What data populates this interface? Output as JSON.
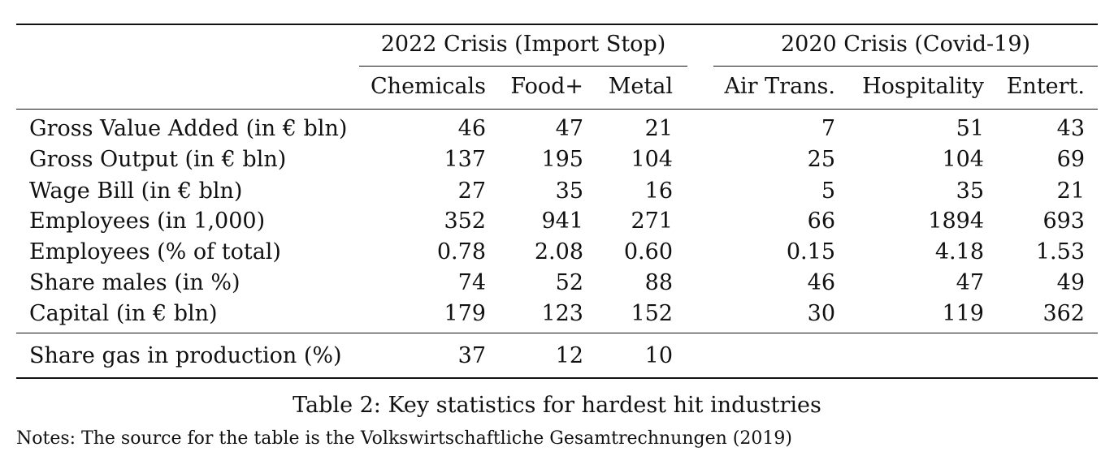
{
  "table": {
    "group_headers": [
      "2022 Crisis (Import Stop)",
      "2020 Crisis (Covid-19)"
    ],
    "columns": [
      "Chemicals",
      "Food+",
      "Metal",
      "Air Trans.",
      "Hospitality",
      "Entert."
    ],
    "rows": [
      {
        "label": "Gross Value Added (in € bln)",
        "values": [
          "46",
          "47",
          "21",
          "7",
          "51",
          "43"
        ]
      },
      {
        "label": "Gross Output (in € bln)",
        "values": [
          "137",
          "195",
          "104",
          "25",
          "104",
          "69"
        ]
      },
      {
        "label": "Wage Bill (in € bln)",
        "values": [
          "27",
          "35",
          "16",
          "5",
          "35",
          "21"
        ]
      },
      {
        "label": "Employees (in 1,000)",
        "values": [
          "352",
          "941",
          "271",
          "66",
          "1894",
          "693"
        ]
      },
      {
        "label": "Employees (% of total)",
        "values": [
          "0.78",
          "2.08",
          "0.60",
          "0.15",
          "4.18",
          "1.53"
        ]
      },
      {
        "label": "Share males (in %)",
        "values": [
          "74",
          "52",
          "88",
          "46",
          "47",
          "49"
        ]
      },
      {
        "label": "Capital (in € bln)",
        "values": [
          "179",
          "123",
          "152",
          "30",
          "119",
          "362"
        ]
      }
    ],
    "extra_row": {
      "label": "Share gas in production (%)",
      "values": [
        "37",
        "12",
        "10"
      ]
    }
  },
  "caption": "Table 2: Key statistics for hardest hit industries",
  "notes": "Notes: The source for the table is the Volkswirtschaftliche Gesamtrechnungen (2019)"
}
